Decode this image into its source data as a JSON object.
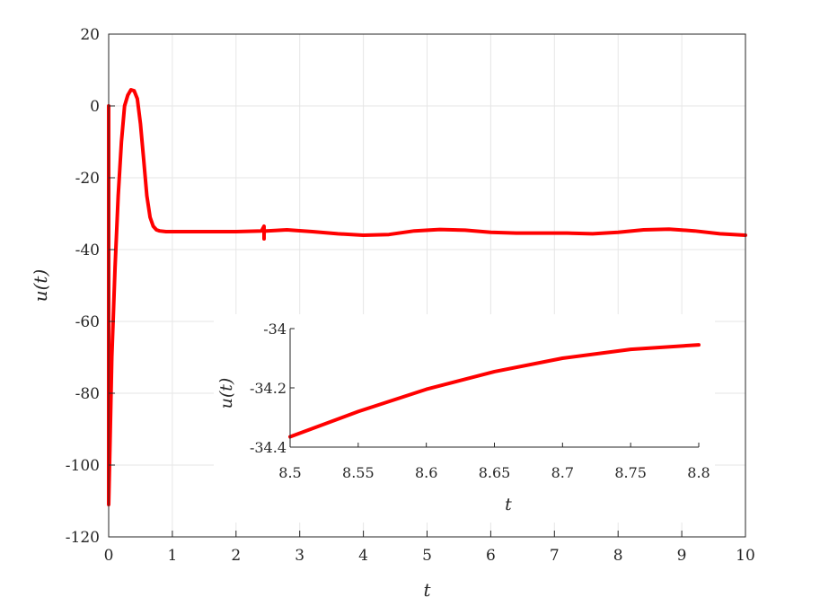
{
  "chart_data": [
    {
      "type": "line",
      "xlabel": "t",
      "ylabel": "u(t)",
      "xlim": [
        0,
        10
      ],
      "ylim": [
        -120,
        20
      ],
      "xticks": [
        0,
        1,
        2,
        3,
        4,
        5,
        6,
        7,
        8,
        9,
        10
      ],
      "yticks": [
        20,
        0,
        -20,
        -40,
        -60,
        -80,
        -100,
        -120
      ],
      "grid": true,
      "series": [
        {
          "color": "#ff0000",
          "x": [
            0,
            0.0,
            0.02,
            0.05,
            0.1,
            0.15,
            0.2,
            0.25,
            0.3,
            0.35,
            0.4,
            0.45,
            0.5,
            0.55,
            0.6,
            0.65,
            0.7,
            0.75,
            0.8,
            0.9,
            1.0,
            1.5,
            2.0,
            2.4,
            2.44,
            2.44,
            2.44,
            2.48,
            2.8,
            3.2,
            3.6,
            4.0,
            4.4,
            4.8,
            5.2,
            5.6,
            6.0,
            6.4,
            6.8,
            7.2,
            7.6,
            8.0,
            8.4,
            8.8,
            9.2,
            9.6,
            10.0
          ],
          "y": [
            0,
            -111,
            -95,
            -70,
            -45,
            -25,
            -10,
            0,
            3,
            4.5,
            4.2,
            2,
            -5,
            -15,
            -25,
            -31,
            -33.5,
            -34.5,
            -34.8,
            -35,
            -35,
            -35,
            -35,
            -34.8,
            -33.5,
            -37,
            -35,
            -34.8,
            -34.5,
            -35,
            -35.6,
            -36,
            -35.8,
            -34.8,
            -34.4,
            -34.6,
            -35.2,
            -35.4,
            -35.4,
            -35.4,
            -35.6,
            -35.2,
            -34.5,
            -34.3,
            -34.8,
            -35.6,
            -36
          ]
        }
      ]
    },
    {
      "type": "line",
      "xlabel": "t",
      "ylabel": "u(t)",
      "xlim": [
        8.5,
        8.8
      ],
      "ylim": [
        -34.4,
        -34
      ],
      "xticks": [
        8.5,
        8.55,
        8.6,
        8.65,
        8.7,
        8.75,
        8.8
      ],
      "yticks": [
        -34,
        -34.2,
        -34.4
      ],
      "grid": false,
      "series": [
        {
          "color": "#ff0000",
          "x": [
            8.5,
            8.55,
            8.6,
            8.65,
            8.7,
            8.75,
            8.8
          ],
          "y": [
            -34.365,
            -34.28,
            -34.205,
            -34.145,
            -34.1,
            -34.07,
            -34.055
          ]
        }
      ]
    }
  ]
}
